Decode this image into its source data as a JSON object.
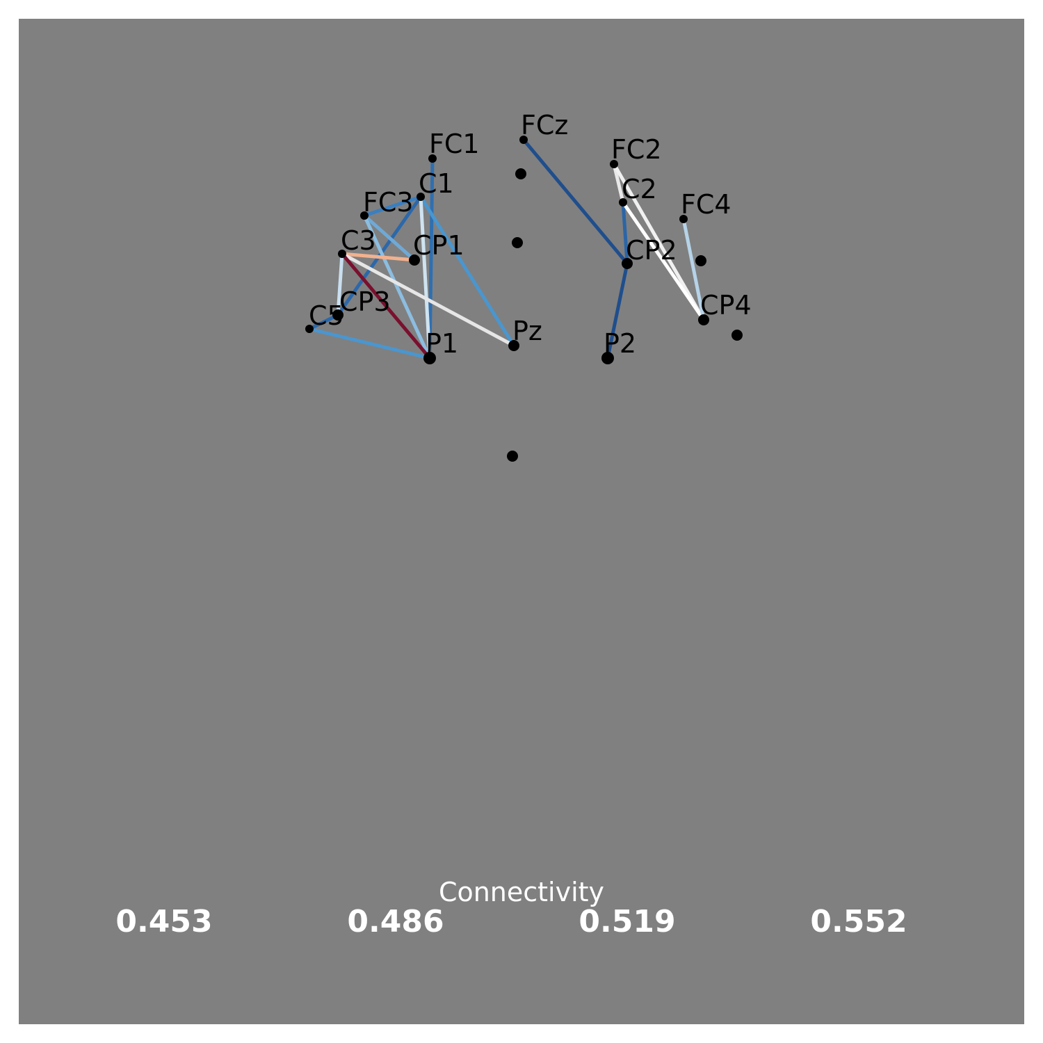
{
  "electrodes": [
    {
      "id": "FC1",
      "label": "FC1"
    },
    {
      "id": "FCz",
      "label": "FCz"
    },
    {
      "id": "FC2",
      "label": "FC2"
    },
    {
      "id": "C1",
      "label": "C1"
    },
    {
      "id": "FC3",
      "label": "FC3"
    },
    {
      "id": "C2",
      "label": "C2"
    },
    {
      "id": "FC4",
      "label": "FC4"
    },
    {
      "id": "C3",
      "label": "C3"
    },
    {
      "id": "CP1",
      "label": "CP1"
    },
    {
      "id": "CP2",
      "label": "CP2"
    },
    {
      "id": "CP3",
      "label": "CP3"
    },
    {
      "id": "C5",
      "label": "C5"
    },
    {
      "id": "CP4",
      "label": "CP4"
    },
    {
      "id": "Pz",
      "label": "Pz"
    },
    {
      "id": "P1",
      "label": "P1"
    },
    {
      "id": "P2",
      "label": "P2"
    },
    {
      "id": "u1",
      "label": ""
    },
    {
      "id": "u2",
      "label": ""
    },
    {
      "id": "u3",
      "label": ""
    },
    {
      "id": "u4",
      "label": ""
    },
    {
      "id": "u5",
      "label": ""
    }
  ],
  "connections": [
    {
      "from": "FCz",
      "to": "CP2",
      "color": "#1f4e8c"
    },
    {
      "from": "CP2",
      "to": "P2",
      "color": "#1f4e8c"
    },
    {
      "from": "C2",
      "to": "CP2",
      "color": "#2b65a6"
    },
    {
      "from": "FC2",
      "to": "C2",
      "color": "#e8e8e8"
    },
    {
      "from": "FC2",
      "to": "CP4",
      "color": "#f0f0f0"
    },
    {
      "from": "C2",
      "to": "CP4",
      "color": "#ffffff"
    },
    {
      "from": "FC4",
      "to": "CP4",
      "color": "#b6d3e8"
    },
    {
      "from": "FC1",
      "to": "P1",
      "color": "#2f6fb0"
    },
    {
      "from": "C1",
      "to": "FC3",
      "color": "#3a7fc0"
    },
    {
      "from": "C1",
      "to": "CP3",
      "color": "#2c68aa"
    },
    {
      "from": "C1",
      "to": "Pz",
      "color": "#4a96cf"
    },
    {
      "from": "C1",
      "to": "P1",
      "color": "#cfe3f0"
    },
    {
      "from": "FC3",
      "to": "CP1",
      "color": "#6fa9d6"
    },
    {
      "from": "FC3",
      "to": "P1",
      "color": "#8cbde0"
    },
    {
      "from": "C3",
      "to": "CP1",
      "color": "#f2b18e"
    },
    {
      "from": "C3",
      "to": "Pz",
      "color": "#e6e6e6"
    },
    {
      "from": "C3",
      "to": "P1",
      "color": "#7a0f2e"
    },
    {
      "from": "C3",
      "to": "CP3",
      "color": "#c9dff0"
    },
    {
      "from": "C5",
      "to": "P1",
      "color": "#4a96cf"
    },
    {
      "from": "C5",
      "to": "CP3",
      "color": "#2c68aa"
    }
  ],
  "colorbar": {
    "title": "Connectivity",
    "ticks": [
      "0.453",
      "0.486",
      "0.519",
      "0.552"
    ]
  }
}
